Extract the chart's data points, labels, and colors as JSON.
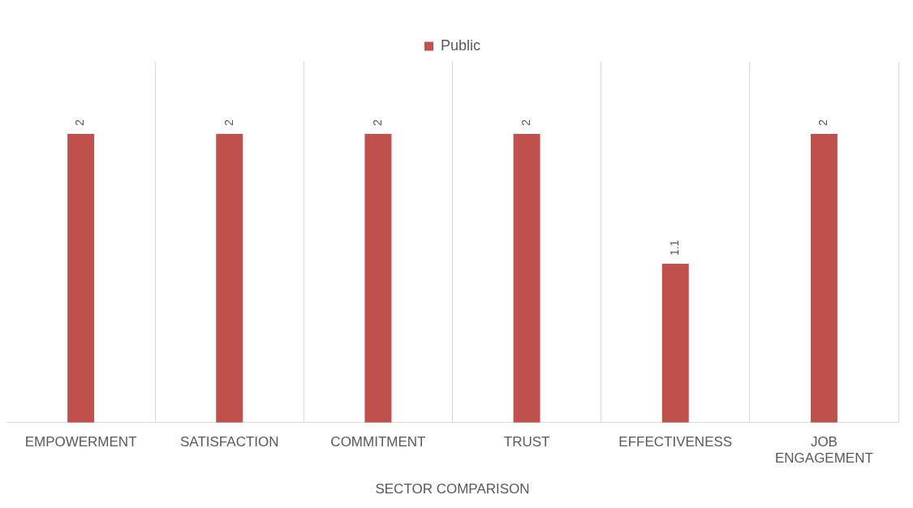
{
  "chart_data": {
    "type": "bar",
    "xlabel": "SECTOR COMPARISON",
    "categories": [
      "EMPOWERMENT",
      "SATISFACTION",
      "COMMITMENT",
      "TRUST",
      "EFFECTIVENESS",
      "JOB ENGAGEMENT"
    ],
    "series": [
      {
        "name": "Public",
        "color": "#c0504d",
        "values": [
          2,
          2,
          2,
          2,
          1.1,
          2
        ]
      }
    ],
    "data_labels": true,
    "grid": "x",
    "legend": "top"
  }
}
